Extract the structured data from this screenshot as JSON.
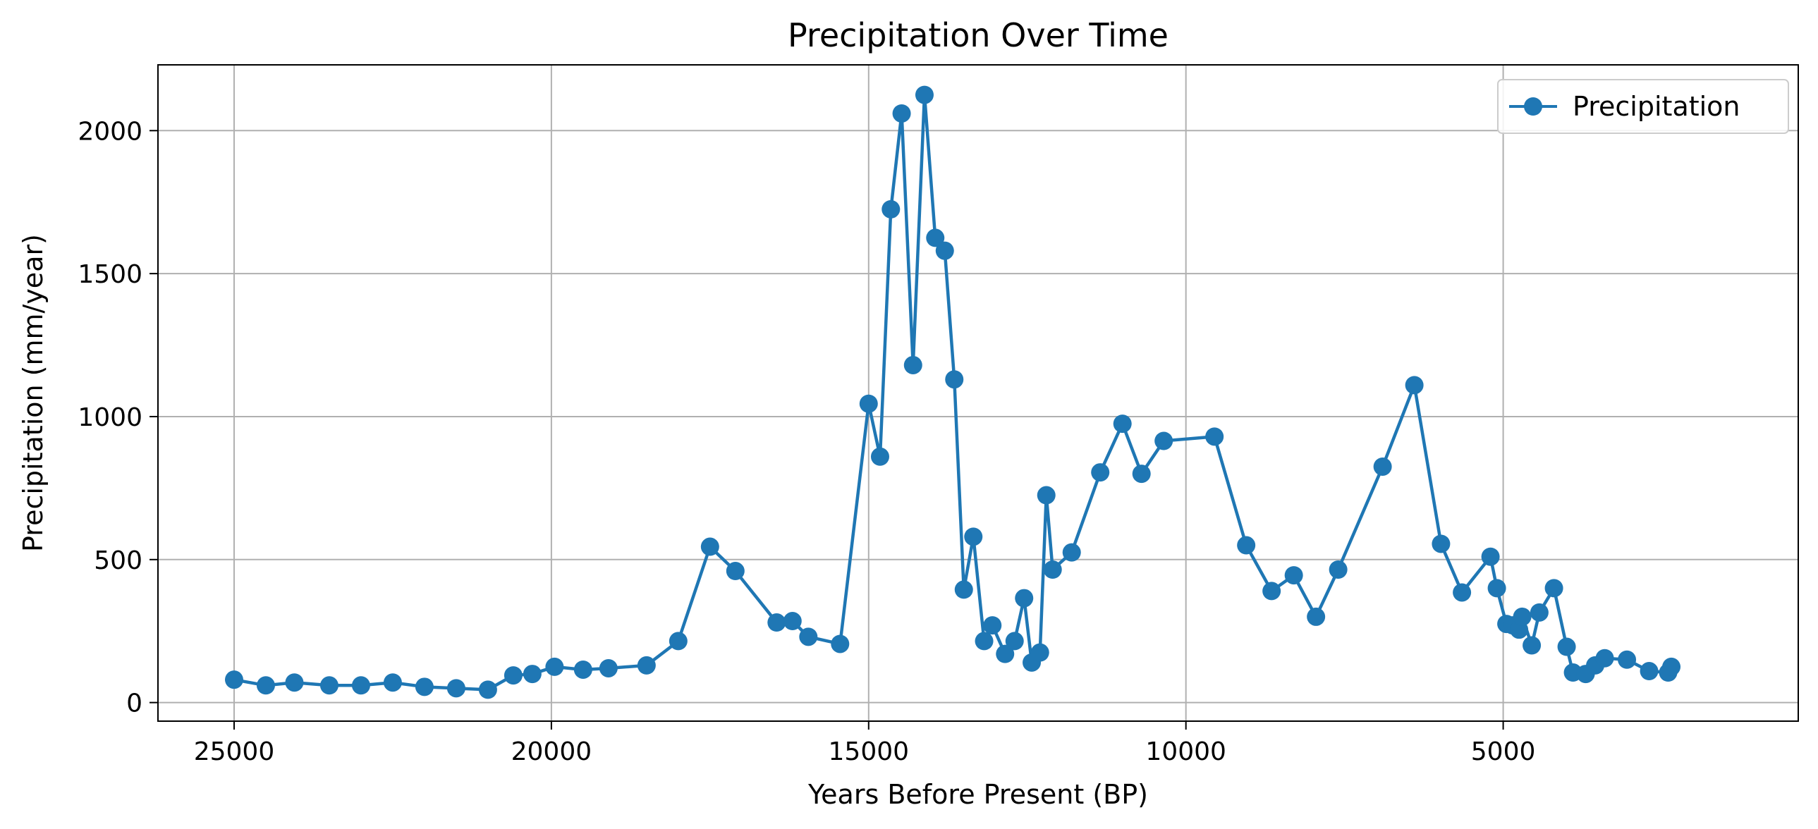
{
  "chart_data": {
    "type": "line",
    "title": "Precipitation Over Time",
    "xlabel": "Years Before Present (BP)",
    "ylabel": "Precipitation (mm/year)",
    "x_reversed": true,
    "xlim": [
      26200,
      350
    ],
    "ylim": [
      -65,
      2230
    ],
    "x_ticks": [
      25000,
      20000,
      15000,
      10000,
      5000
    ],
    "y_ticks": [
      0,
      500,
      1000,
      1500,
      2000
    ],
    "grid": true,
    "legend_position": "top-right",
    "color": "#1f77b4",
    "series": [
      {
        "name": "Precipitation",
        "x": [
          25000,
          24500,
          24050,
          23500,
          23000,
          22500,
          22000,
          21500,
          21000,
          20600,
          20300,
          19950,
          19500,
          19100,
          18500,
          18000,
          17500,
          17100,
          16450,
          16200,
          15950,
          15450,
          15000,
          14820,
          14650,
          14480,
          14300,
          14120,
          13950,
          13800,
          13650,
          13500,
          13350,
          13180,
          13050,
          12850,
          12700,
          12550,
          12430,
          12300,
          12200,
          12100,
          11800,
          11350,
          11000,
          10700,
          10350,
          9550,
          9050,
          8650,
          8300,
          7950,
          7600,
          6900,
          6400,
          5980,
          5650,
          5200,
          5100,
          4950,
          4850,
          4750,
          4700,
          4550,
          4430,
          4200,
          4000,
          3900,
          3700,
          3550,
          3400,
          3050,
          2700,
          2400,
          2350
        ],
        "values": [
          80,
          60,
          70,
          60,
          60,
          70,
          55,
          50,
          45,
          95,
          100,
          125,
          115,
          120,
          130,
          215,
          545,
          460,
          280,
          285,
          230,
          205,
          1045,
          860,
          1725,
          2060,
          1180,
          2125,
          1625,
          1580,
          1130,
          395,
          580,
          215,
          270,
          170,
          215,
          365,
          140,
          175,
          725,
          465,
          525,
          805,
          975,
          800,
          915,
          930,
          550,
          390,
          445,
          300,
          465,
          825,
          1110,
          555,
          385,
          510,
          400,
          275,
          270,
          255,
          300,
          200,
          315,
          400,
          195,
          105,
          100,
          130,
          155,
          150,
          110,
          105,
          125
        ]
      }
    ]
  }
}
